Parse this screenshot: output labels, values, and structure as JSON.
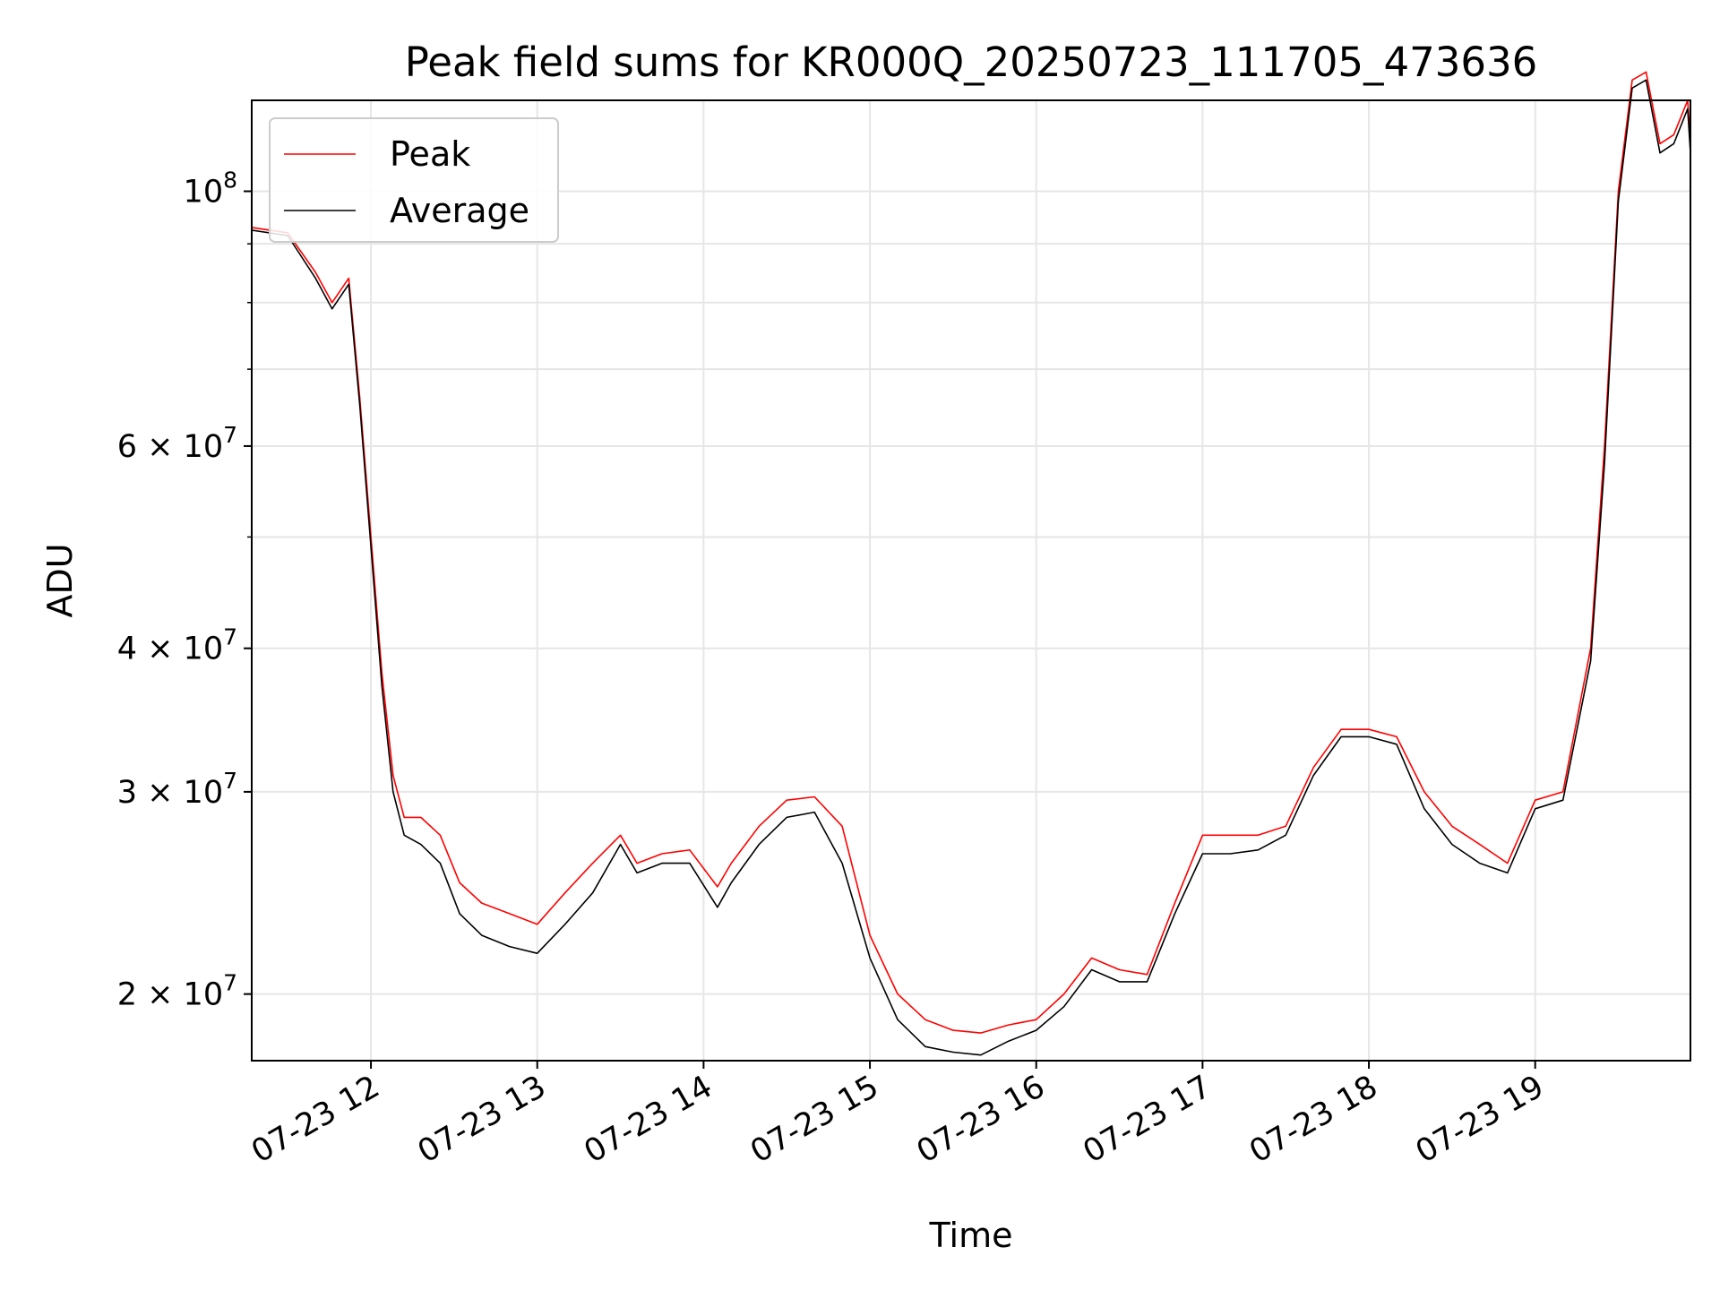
{
  "chart_data": {
    "type": "line",
    "title": "Peak field sums for KR000Q_20250723_111705_473636",
    "xlabel": "Time",
    "ylabel": "ADU",
    "yscale": "log",
    "xlim": [
      "2025-07-23 11:17",
      "2025-07-23 19:56"
    ],
    "ylim": [
      17500000,
      120000000
    ],
    "grid": true,
    "legend_position": "upper-left",
    "x_ticks": [
      {
        "value": "2025-07-23 12:00",
        "label": "07-23 12"
      },
      {
        "value": "2025-07-23 13:00",
        "label": "07-23 13"
      },
      {
        "value": "2025-07-23 14:00",
        "label": "07-23 14"
      },
      {
        "value": "2025-07-23 15:00",
        "label": "07-23 15"
      },
      {
        "value": "2025-07-23 16:00",
        "label": "07-23 16"
      },
      {
        "value": "2025-07-23 17:00",
        "label": "07-23 17"
      },
      {
        "value": "2025-07-23 18:00",
        "label": "07-23 18"
      },
      {
        "value": "2025-07-23 19:00",
        "label": "07-23 19"
      }
    ],
    "y_ticks": [
      {
        "value": 20000000,
        "base": "2 × 10",
        "exp": "7"
      },
      {
        "value": 30000000,
        "base": "3 × 10",
        "exp": "7"
      },
      {
        "value": 40000000,
        "base": "4 × 10",
        "exp": "7"
      },
      {
        "value": 60000000,
        "base": "6 × 10",
        "exp": "7"
      },
      {
        "value": 100000000,
        "base": "10",
        "exp": "8"
      }
    ],
    "series": [
      {
        "name": "Peak",
        "color": "#ff0000",
        "x": [
          "2025-07-23 11:17",
          "2025-07-23 11:30",
          "2025-07-23 11:40",
          "2025-07-23 11:46",
          "2025-07-23 11:52",
          "2025-07-23 11:56",
          "2025-07-23 12:00",
          "2025-07-23 12:04",
          "2025-07-23 12:08",
          "2025-07-23 12:12",
          "2025-07-23 12:18",
          "2025-07-23 12:25",
          "2025-07-23 12:32",
          "2025-07-23 12:40",
          "2025-07-23 12:50",
          "2025-07-23 13:00",
          "2025-07-23 13:10",
          "2025-07-23 13:20",
          "2025-07-23 13:30",
          "2025-07-23 13:36",
          "2025-07-23 13:45",
          "2025-07-23 13:55",
          "2025-07-23 14:05",
          "2025-07-23 14:10",
          "2025-07-23 14:20",
          "2025-07-23 14:30",
          "2025-07-23 14:40",
          "2025-07-23 14:50",
          "2025-07-23 15:00",
          "2025-07-23 15:10",
          "2025-07-23 15:20",
          "2025-07-23 15:30",
          "2025-07-23 15:40",
          "2025-07-23 15:50",
          "2025-07-23 16:00",
          "2025-07-23 16:10",
          "2025-07-23 16:20",
          "2025-07-23 16:30",
          "2025-07-23 16:40",
          "2025-07-23 16:50",
          "2025-07-23 17:00",
          "2025-07-23 17:10",
          "2025-07-23 17:20",
          "2025-07-23 17:30",
          "2025-07-23 17:40",
          "2025-07-23 17:50",
          "2025-07-23 18:00",
          "2025-07-23 18:10",
          "2025-07-23 18:20",
          "2025-07-23 18:30",
          "2025-07-23 18:40",
          "2025-07-23 18:50",
          "2025-07-23 19:00",
          "2025-07-23 19:10",
          "2025-07-23 19:20",
          "2025-07-23 19:25",
          "2025-07-23 19:30",
          "2025-07-23 19:35",
          "2025-07-23 19:40",
          "2025-07-23 19:45",
          "2025-07-23 19:50",
          "2025-07-23 19:55",
          "2025-07-23 19:56"
        ],
        "y": [
          93000000,
          92000000,
          85000000,
          80000000,
          84000000,
          66000000,
          50000000,
          38000000,
          31000000,
          28500000,
          28500000,
          27500000,
          25000000,
          24000000,
          23500000,
          23000000,
          24500000,
          26000000,
          27500000,
          26000000,
          26500000,
          26700000,
          24800000,
          26000000,
          28000000,
          29500000,
          29700000,
          28000000,
          22500000,
          20000000,
          19000000,
          18600000,
          18500000,
          18800000,
          19000000,
          20000000,
          21500000,
          21000000,
          20800000,
          24000000,
          27500000,
          27500000,
          27500000,
          28000000,
          31500000,
          34000000,
          34000000,
          33500000,
          30000000,
          28000000,
          27000000,
          26000000,
          29500000,
          30000000,
          40000000,
          60000000,
          100000000,
          125000000,
          127000000,
          110000000,
          112000000,
          120000000,
          110000000
        ]
      },
      {
        "name": "Average",
        "color": "#000000",
        "x": [
          "2025-07-23 11:17",
          "2025-07-23 11:30",
          "2025-07-23 11:40",
          "2025-07-23 11:46",
          "2025-07-23 11:52",
          "2025-07-23 11:56",
          "2025-07-23 12:00",
          "2025-07-23 12:04",
          "2025-07-23 12:08",
          "2025-07-23 12:12",
          "2025-07-23 12:18",
          "2025-07-23 12:25",
          "2025-07-23 12:32",
          "2025-07-23 12:40",
          "2025-07-23 12:50",
          "2025-07-23 13:00",
          "2025-07-23 13:10",
          "2025-07-23 13:20",
          "2025-07-23 13:30",
          "2025-07-23 13:36",
          "2025-07-23 13:45",
          "2025-07-23 13:55",
          "2025-07-23 14:05",
          "2025-07-23 14:10",
          "2025-07-23 14:20",
          "2025-07-23 14:30",
          "2025-07-23 14:40",
          "2025-07-23 14:50",
          "2025-07-23 15:00",
          "2025-07-23 15:10",
          "2025-07-23 15:20",
          "2025-07-23 15:30",
          "2025-07-23 15:40",
          "2025-07-23 15:50",
          "2025-07-23 16:00",
          "2025-07-23 16:10",
          "2025-07-23 16:20",
          "2025-07-23 16:30",
          "2025-07-23 16:40",
          "2025-07-23 16:50",
          "2025-07-23 17:00",
          "2025-07-23 17:10",
          "2025-07-23 17:20",
          "2025-07-23 17:30",
          "2025-07-23 17:40",
          "2025-07-23 17:50",
          "2025-07-23 18:00",
          "2025-07-23 18:10",
          "2025-07-23 18:20",
          "2025-07-23 18:30",
          "2025-07-23 18:40",
          "2025-07-23 18:50",
          "2025-07-23 19:00",
          "2025-07-23 19:10",
          "2025-07-23 19:20",
          "2025-07-23 19:25",
          "2025-07-23 19:30",
          "2025-07-23 19:35",
          "2025-07-23 19:40",
          "2025-07-23 19:45",
          "2025-07-23 19:50",
          "2025-07-23 19:55",
          "2025-07-23 19:56"
        ],
        "y": [
          92500000,
          91500000,
          84000000,
          79000000,
          83000000,
          65000000,
          49000000,
          37000000,
          30000000,
          27500000,
          27000000,
          26000000,
          23500000,
          22500000,
          22000000,
          21700000,
          23000000,
          24500000,
          27000000,
          25500000,
          26000000,
          26000000,
          23800000,
          25000000,
          27000000,
          28500000,
          28800000,
          26000000,
          21500000,
          19000000,
          18000000,
          17800000,
          17700000,
          18200000,
          18600000,
          19500000,
          21000000,
          20500000,
          20500000,
          23500000,
          26500000,
          26500000,
          26700000,
          27500000,
          31000000,
          33500000,
          33500000,
          33000000,
          29000000,
          27000000,
          26000000,
          25500000,
          29000000,
          29500000,
          39000000,
          58000000,
          98000000,
          123000000,
          125000000,
          108000000,
          110000000,
          118000000,
          108000000
        ]
      }
    ]
  }
}
